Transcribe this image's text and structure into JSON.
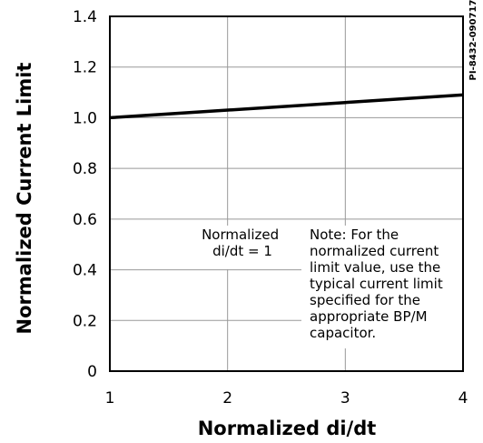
{
  "chart_data": {
    "type": "line",
    "title": "",
    "xlabel": "Normalized di/dt",
    "ylabel": "Normalized Current Limit",
    "xlim": [
      1,
      4
    ],
    "ylim": [
      0,
      1.4
    ],
    "x_ticks": [
      "1",
      "2",
      "3",
      "4"
    ],
    "y_ticks": [
      "0",
      "0.2",
      "0.4",
      "0.6",
      "0.8",
      "1.0",
      "1.2",
      "1.4"
    ],
    "grid": true,
    "series": [
      {
        "x": [
          1,
          4
        ],
        "y": [
          1.0,
          1.09
        ]
      }
    ],
    "annotations": {
      "label_di_dt": [
        "Normalized",
        "di/dt = 1"
      ],
      "note": [
        "Note: For the",
        "normalized current",
        "limit value, use the",
        "typical current limit",
        "specified for the",
        "appropriate BP/M",
        "capacitor."
      ]
    },
    "part_number": "PI-8432-090717",
    "colors": {
      "line": "#000000",
      "grid": "#999999",
      "frame": "#000000"
    }
  }
}
